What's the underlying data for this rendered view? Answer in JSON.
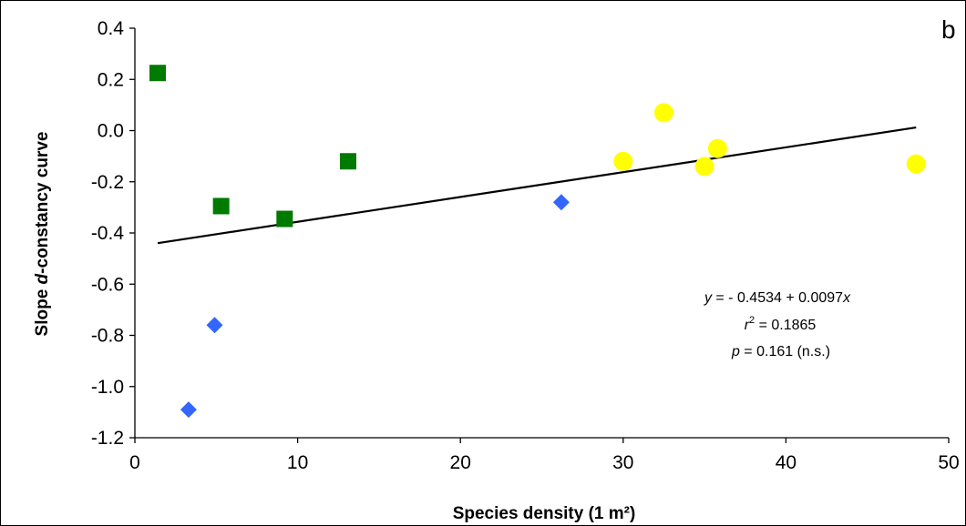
{
  "chart_data": {
    "type": "scatter",
    "panel_label": "b",
    "xlabel": "Species density (1 m²)",
    "ylabel_prefix": "Slope ",
    "ylabel_italic": "d",
    "ylabel_suffix": "-constancy curve",
    "xlim": [
      0,
      50
    ],
    "ylim": [
      -1.2,
      0.4
    ],
    "x_ticks": [
      0,
      10,
      20,
      30,
      40,
      50
    ],
    "y_ticks": [
      0.4,
      0.2,
      0.0,
      -0.2,
      -0.4,
      -0.6,
      -0.8,
      -1.0,
      -1.2
    ],
    "y_tick_labels": [
      "0.4",
      "0.2",
      "0.0",
      "-0.2",
      "-0.4",
      "-0.6",
      "-0.8",
      "-1.0",
      "-1.2"
    ],
    "grid": false,
    "series": [
      {
        "marker": "diamond",
        "color": "#3366ff",
        "points": [
          [
            3.3,
            -1.09
          ],
          [
            4.9,
            -0.76
          ],
          [
            26.2,
            -0.28
          ]
        ]
      },
      {
        "marker": "square",
        "color": "#007a00",
        "points": [
          [
            1.4,
            0.225
          ],
          [
            5.3,
            -0.295
          ],
          [
            9.2,
            -0.345
          ],
          [
            13.1,
            -0.12
          ]
        ]
      },
      {
        "marker": "circle",
        "color": "#ffff00",
        "points": [
          [
            30.0,
            -0.12
          ],
          [
            32.5,
            0.07
          ],
          [
            35.0,
            -0.14
          ],
          [
            35.8,
            -0.07
          ],
          [
            48.0,
            -0.13
          ]
        ]
      }
    ],
    "trendline": {
      "intercept": -0.4534,
      "slope": 0.0097,
      "x_range": [
        1.4,
        48.0
      ],
      "color": "#000000"
    },
    "annotation": {
      "eq_y": "y",
      "eq_text": " = - 0.4534 + 0.0097",
      "eq_x": "x",
      "r_var": "r",
      "r_exp": "2",
      "r_text": " = 0.1865",
      "p_var": "p",
      "p_text": " = 0.161 (n.s.)"
    }
  }
}
